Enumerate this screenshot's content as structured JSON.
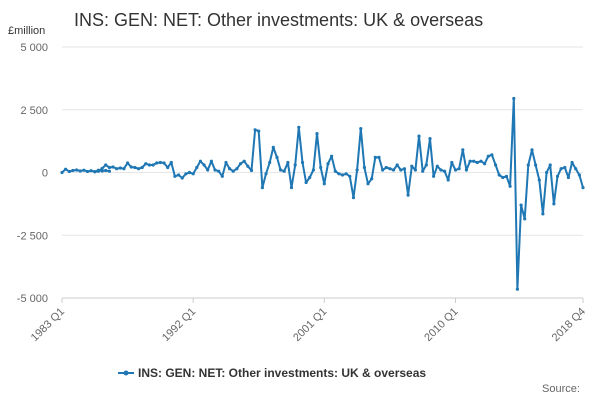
{
  "chart_data": {
    "type": "line",
    "title": "INS: GEN: NET: Other investments: UK & overseas",
    "ylabel": "£million",
    "ylim": [
      -5000,
      5000
    ],
    "yticks": [
      5000,
      2500,
      0,
      -2500,
      -5000
    ],
    "ytick_labels": [
      "5 000",
      "2 500",
      "0",
      "-2 500",
      "-5 000"
    ],
    "xlim": [
      1983.0,
      2018.75
    ],
    "xticks": [
      1983.0,
      1992.0,
      2001.0,
      2010.0,
      2018.75
    ],
    "xtick_labels": [
      "1983 Q1",
      "1992 Q1",
      "2001 Q1",
      "2010 Q1",
      "2018 Q4"
    ],
    "grid": "horizontal",
    "legend_position": "bottom",
    "color": "#1f77b4",
    "series": [
      {
        "name": "INS: GEN: NET: Other investments: UK & overseas",
        "segments": [
          {
            "x": [
              1983.0,
              1983.25,
              1983.5,
              1983.75,
              1984.0,
              1984.25,
              1984.5,
              1984.75,
              1985.0,
              1985.25,
              1985.5,
              1985.75,
              1986.0,
              1986.25
            ],
            "y": [
              0,
              130,
              40,
              80,
              100,
              60,
              90,
              40,
              70,
              30,
              90,
              60,
              80,
              50
            ]
          },
          {
            "x": [
              1985.25,
              1985.5,
              1985.75,
              1986.0,
              1986.25,
              1986.5,
              1986.75,
              1987.0,
              1987.25,
              1987.5,
              1987.75,
              1988.0,
              1988.25,
              1988.5,
              1988.75,
              1989.0,
              1989.25,
              1989.5,
              1989.75,
              1990.0,
              1990.25,
              1990.5,
              1990.75,
              1991.0,
              1991.25,
              1991.5,
              1991.75,
              1992.0,
              1992.25,
              1992.5,
              1992.75,
              1993.0,
              1993.25,
              1993.5,
              1993.75,
              1994.0,
              1994.25,
              1994.5,
              1994.75,
              1995.0,
              1995.25,
              1995.5,
              1995.75,
              1996.0,
              1996.25,
              1996.5,
              1996.75,
              1997.0,
              1997.25,
              1997.5,
              1997.75,
              1998.0,
              1998.25,
              1998.5,
              1998.75,
              1999.0,
              1999.25,
              1999.5,
              1999.75,
              2000.0,
              2000.25,
              2000.5,
              2000.75,
              2001.0,
              2001.25,
              2001.5,
              2001.75,
              2002.0,
              2002.25,
              2002.5,
              2002.75,
              2003.0,
              2003.25,
              2003.5,
              2003.75,
              2004.0,
              2004.25,
              2004.5,
              2004.75,
              2005.0,
              2005.25,
              2005.5,
              2005.75,
              2006.0,
              2006.25,
              2006.5,
              2006.75,
              2007.0,
              2007.25,
              2007.5,
              2007.75,
              2008.0,
              2008.25,
              2008.5,
              2008.75,
              2009.0,
              2009.25,
              2009.5,
              2009.75,
              2010.0,
              2010.25,
              2010.5,
              2010.75,
              2011.0,
              2011.25,
              2011.5,
              2011.75,
              2012.0,
              2012.25,
              2012.5,
              2012.75,
              2013.0,
              2013.25,
              2013.5,
              2013.75,
              2014.0,
              2014.25,
              2014.5,
              2014.75,
              2015.0,
              2015.25,
              2015.5,
              2015.75,
              2016.0,
              2016.25,
              2016.5,
              2016.75,
              2017.0,
              2017.25,
              2017.5,
              2017.75,
              2018.0,
              2018.25,
              2018.5,
              2018.75
            ],
            "y": [
              30,
              50,
              160,
              300,
              200,
              220,
              150,
              180,
              150,
              380,
              220,
              200,
              150,
              200,
              350,
              300,
              300,
              380,
              400,
              380,
              200,
              400,
              -150,
              -100,
              -220,
              -50,
              0,
              -50,
              200,
              450,
              300,
              100,
              450,
              100,
              50,
              -150,
              400,
              150,
              50,
              150,
              350,
              450,
              250,
              80,
              1700,
              1650,
              -600,
              -50,
              400,
              1000,
              600,
              100,
              50,
              400,
              -600,
              300,
              1800,
              400,
              -400,
              -200,
              100,
              1550,
              200,
              -450,
              350,
              650,
              50,
              -50,
              -100,
              -50,
              -150,
              -1000,
              100,
              1750,
              200,
              -450,
              -250,
              600,
              600,
              100,
              200,
              150,
              100,
              300,
              100,
              150,
              -900,
              250,
              100,
              1450,
              50,
              300,
              1350,
              -150,
              250,
              100,
              50,
              -300,
              400,
              100,
              150,
              900,
              100,
              450,
              450,
              400,
              450,
              350,
              650,
              700,
              300,
              -100,
              -200,
              -150,
              -550,
              2950,
              -4650,
              -1300,
              -1850,
              300,
              900,
              300,
              -300,
              -1650,
              0,
              300,
              -1250,
              -150,
              150,
              200,
              -200,
              400,
              150,
              -100,
              -600
            ]
          }
        ]
      }
    ],
    "legend": "INS: GEN: NET: Other investments: UK & overseas",
    "source_label": "Source:"
  }
}
